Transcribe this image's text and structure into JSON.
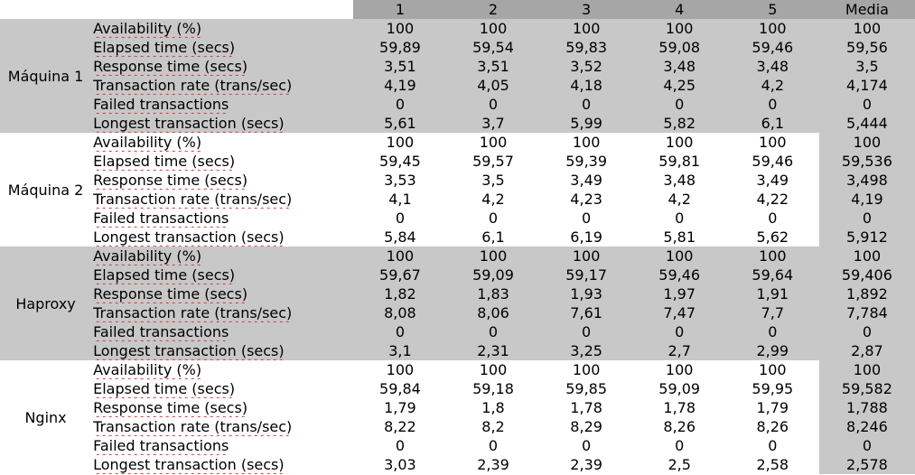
{
  "header": {
    "runs": [
      "1",
      "2",
      "3",
      "4",
      "5"
    ],
    "mean": "Media"
  },
  "metrics": [
    "Availability (%)",
    "Elapsed time (secs)",
    "Response time (secs)",
    "Transaction rate (trans/sec)",
    "Failed transactions",
    "Longest transaction (secs)"
  ],
  "groups": [
    {
      "name": "Máquina 1",
      "rows": [
        {
          "values": [
            "100",
            "100",
            "100",
            "100",
            "100"
          ],
          "mean": "100"
        },
        {
          "values": [
            "59,89",
            "59,54",
            "59,83",
            "59,08",
            "59,46"
          ],
          "mean": "59,56"
        },
        {
          "values": [
            "3,51",
            "3,51",
            "3,52",
            "3,48",
            "3,48"
          ],
          "mean": "3,5"
        },
        {
          "values": [
            "4,19",
            "4,05",
            "4,18",
            "4,25",
            "4,2"
          ],
          "mean": "4,174"
        },
        {
          "values": [
            "0",
            "0",
            "0",
            "0",
            "0"
          ],
          "mean": "0"
        },
        {
          "values": [
            "5,61",
            "3,7",
            "5,99",
            "5,82",
            "6,1"
          ],
          "mean": "5,444"
        }
      ]
    },
    {
      "name": "Máquina 2",
      "rows": [
        {
          "values": [
            "100",
            "100",
            "100",
            "100",
            "100"
          ],
          "mean": "100"
        },
        {
          "values": [
            "59,45",
            "59,57",
            "59,39",
            "59,81",
            "59,46"
          ],
          "mean": "59,536"
        },
        {
          "values": [
            "3,53",
            "3,5",
            "3,49",
            "3,48",
            "3,49"
          ],
          "mean": "3,498"
        },
        {
          "values": [
            "4,1",
            "4,2",
            "4,23",
            "4,2",
            "4,22"
          ],
          "mean": "4,19"
        },
        {
          "values": [
            "0",
            "0",
            "0",
            "0",
            "0"
          ],
          "mean": "0"
        },
        {
          "values": [
            "5,84",
            "6,1",
            "6,19",
            "5,81",
            "5,62"
          ],
          "mean": "5,912"
        }
      ]
    },
    {
      "name": "Haproxy",
      "rows": [
        {
          "values": [
            "100",
            "100",
            "100",
            "100",
            "100"
          ],
          "mean": "100"
        },
        {
          "values": [
            "59,67",
            "59,09",
            "59,17",
            "59,46",
            "59,64"
          ],
          "mean": "59,406"
        },
        {
          "values": [
            "1,82",
            "1,83",
            "1,93",
            "1,97",
            "1,91"
          ],
          "mean": "1,892"
        },
        {
          "values": [
            "8,08",
            "8,06",
            "7,61",
            "7,47",
            "7,7"
          ],
          "mean": "7,784"
        },
        {
          "values": [
            "0",
            "0",
            "0",
            "0",
            "0"
          ],
          "mean": "0"
        },
        {
          "values": [
            "3,1",
            "2,31",
            "3,25",
            "2,7",
            "2,99"
          ],
          "mean": "2,87"
        }
      ]
    },
    {
      "name": "Nginx",
      "rows": [
        {
          "values": [
            "100",
            "100",
            "100",
            "100",
            "100"
          ],
          "mean": "100"
        },
        {
          "values": [
            "59,84",
            "59,18",
            "59,85",
            "59,09",
            "59,95"
          ],
          "mean": "59,582"
        },
        {
          "values": [
            "1,79",
            "1,8",
            "1,78",
            "1,78",
            "1,79"
          ],
          "mean": "1,788"
        },
        {
          "values": [
            "8,22",
            "8,2",
            "8,29",
            "8,26",
            "8,26"
          ],
          "mean": "8,246"
        },
        {
          "values": [
            "0",
            "0",
            "0",
            "0",
            "0"
          ],
          "mean": "0"
        },
        {
          "values": [
            "3,03",
            "2,39",
            "2,39",
            "2,5",
            "2,58"
          ],
          "mean": "2,578"
        }
      ]
    }
  ],
  "colors": {
    "header_bg": "#a6a6a6",
    "group_grey": "#c8c8c8",
    "group_white": "#ffffff",
    "spell_underline": "#d23a3a"
  }
}
